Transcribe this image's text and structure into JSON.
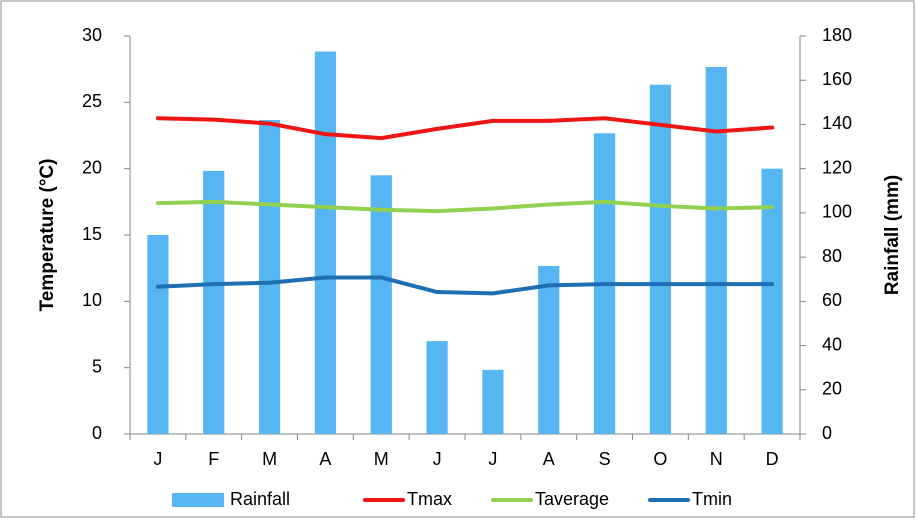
{
  "chart_data": {
    "type": "bar",
    "categories": [
      "J",
      "F",
      "M",
      "A",
      "M",
      "J",
      "J",
      "A",
      "S",
      "O",
      "N",
      "D"
    ],
    "series": [
      {
        "name": "Rainfall",
        "type": "bar",
        "axis": "y2",
        "color": "#55b6f2",
        "values": [
          90,
          119,
          142,
          173,
          117,
          42,
          29,
          76,
          136,
          158,
          166,
          120
        ]
      },
      {
        "name": "Tmax",
        "type": "line",
        "color": "#f01515",
        "values": [
          23.8,
          23.7,
          23.4,
          22.6,
          22.3,
          23.0,
          23.6,
          23.6,
          23.8,
          23.3,
          22.8,
          23.1
        ]
      },
      {
        "name": "Taverage",
        "type": "line",
        "color": "#92d050",
        "values": [
          17.4,
          17.5,
          17.3,
          17.1,
          16.9,
          16.8,
          17.0,
          17.3,
          17.5,
          17.2,
          17.0,
          17.1
        ]
      },
      {
        "name": "Tmin",
        "type": "line",
        "color": "#1f6eb4",
        "values": [
          11.1,
          11.3,
          11.4,
          11.8,
          11.8,
          10.7,
          10.6,
          11.2,
          11.3,
          11.3,
          11.3,
          11.3
        ]
      }
    ],
    "ylabel": "Temperature (°C)",
    "y2label": "Rainfall (mm)",
    "ylim": [
      0,
      30
    ],
    "yticks": [
      0,
      5,
      10,
      15,
      20,
      25,
      30
    ],
    "y2lim": [
      0,
      180
    ],
    "y2ticks": [
      0,
      20,
      40,
      60,
      80,
      100,
      120,
      140,
      160,
      180
    ],
    "grid": false,
    "legend": "bottom"
  }
}
